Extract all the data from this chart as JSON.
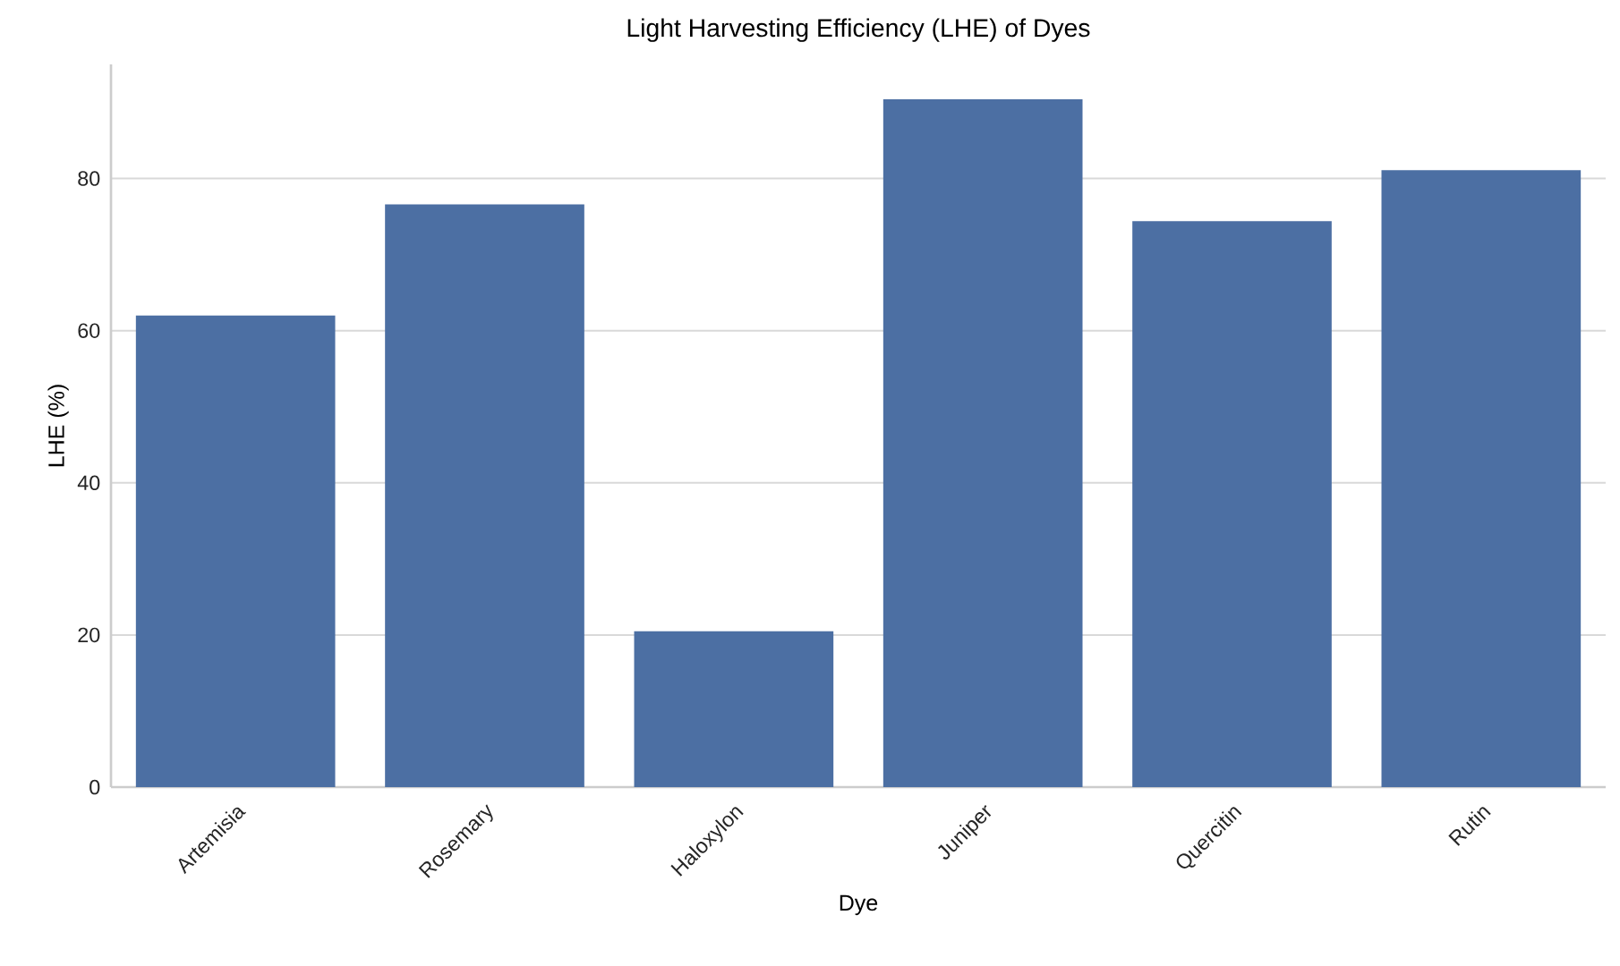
{
  "chart_data": {
    "type": "bar",
    "title": "Light Harvesting Efficiency (LHE) of Dyes",
    "xlabel": "Dye",
    "ylabel": "LHE (%)",
    "categories": [
      "Artemisia",
      "Rosemary",
      "Haloxylon",
      "Juniper",
      "Quercitin",
      "Rutin"
    ],
    "values": [
      62.0,
      76.6,
      20.5,
      90.4,
      74.4,
      81.1
    ],
    "color": "#4c6fa3",
    "ylim": [
      0,
      95
    ],
    "yticks": [
      0,
      20,
      40,
      60,
      80
    ],
    "grid": "y"
  }
}
